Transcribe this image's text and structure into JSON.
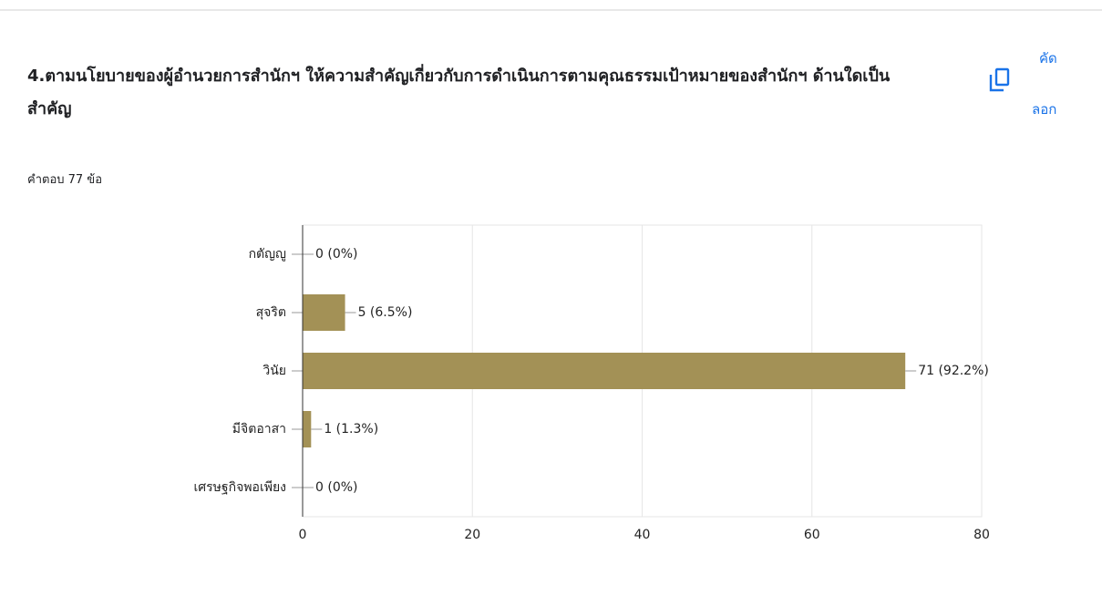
{
  "chart_data": {
    "type": "bar",
    "orientation": "horizontal",
    "title": "4.ตามนโยบายของผู้อำนวยการสำนักฯ ให้ความสำคัญเกี่ยวกับการดำเนินการตามคุณธรรมเป้าหมายของสำนักฯ ด้านใดเป็นสำคัญ",
    "subtitle": "คำตอบ 77 ข้อ",
    "copy_label": [
      "คัด",
      "ลอก"
    ],
    "categories": [
      "กตัญญู",
      "สุจริต",
      "วินัย",
      "มีจิตอาสา",
      "เศรษฐกิจพอเพียง"
    ],
    "values": [
      0,
      5,
      71,
      1,
      0
    ],
    "value_labels": [
      "0 (0%)",
      "5 (6.5%)",
      "71 (92.2%)",
      "1 (1.3%)",
      "0 (0%)"
    ],
    "color": "#a39156",
    "xlim": [
      0,
      80
    ],
    "xticks": [
      0,
      20,
      40,
      60,
      80
    ],
    "grid": true
  }
}
